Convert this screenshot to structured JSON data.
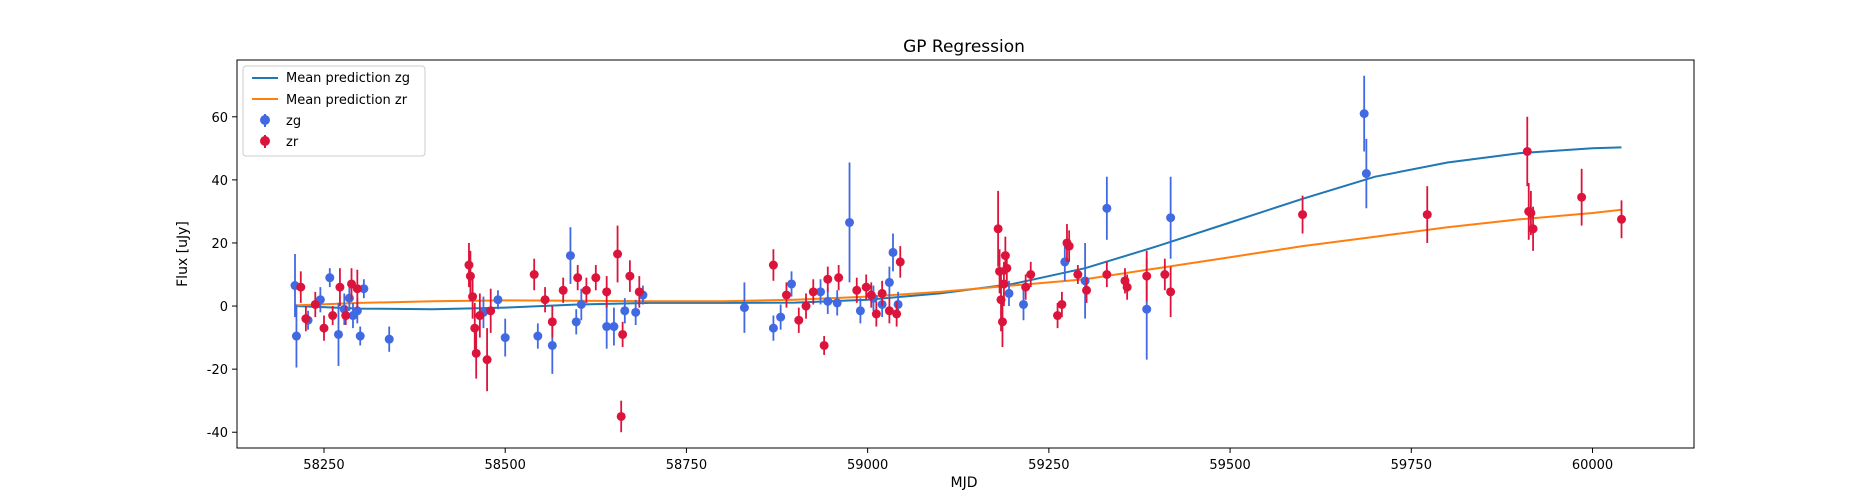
{
  "chart_data": {
    "type": "scatter",
    "title": "GP Regression",
    "xlabel": "MJD",
    "ylabel": "Flux [uJy]",
    "xlim": [
      58130,
      60140
    ],
    "ylim": [
      -45,
      78
    ],
    "x_ticks": [
      58250,
      58500,
      58750,
      59000,
      59250,
      59500,
      59750,
      60000
    ],
    "y_ticks": [
      -40,
      -20,
      0,
      20,
      40,
      60
    ],
    "grid": false,
    "legend_position": "top-left",
    "legend": [
      "Mean prediction zg",
      "Mean prediction zr",
      "zg",
      "zr"
    ],
    "series": [
      {
        "name": "Mean prediction zg",
        "kind": "line",
        "color": "#1f77b4",
        "points": [
          [
            58210,
            0.0
          ],
          [
            58300,
            -0.8
          ],
          [
            58400,
            -1.0
          ],
          [
            58500,
            -0.5
          ],
          [
            58600,
            0.5
          ],
          [
            58700,
            1.0
          ],
          [
            58800,
            1.0
          ],
          [
            58900,
            1.1
          ],
          [
            59000,
            2.0
          ],
          [
            59100,
            4.0
          ],
          [
            59200,
            7.0
          ],
          [
            59300,
            12.0
          ],
          [
            59400,
            19.0
          ],
          [
            59500,
            26.5
          ],
          [
            59600,
            34.0
          ],
          [
            59700,
            41.0
          ],
          [
            59800,
            45.5
          ],
          [
            59900,
            48.5
          ],
          [
            60000,
            50.0
          ],
          [
            60040,
            50.3
          ]
        ]
      },
      {
        "name": "Mean prediction zr",
        "kind": "line",
        "color": "#ff7f0e",
        "points": [
          [
            58210,
            0.2
          ],
          [
            58300,
            1.0
          ],
          [
            58400,
            1.5
          ],
          [
            58500,
            1.8
          ],
          [
            58600,
            1.7
          ],
          [
            58700,
            1.5
          ],
          [
            58800,
            1.5
          ],
          [
            58900,
            2.0
          ],
          [
            59000,
            3.0
          ],
          [
            59100,
            4.5
          ],
          [
            59200,
            6.5
          ],
          [
            59300,
            8.5
          ],
          [
            59400,
            12.0
          ],
          [
            59500,
            15.5
          ],
          [
            59600,
            19.0
          ],
          [
            59700,
            22.0
          ],
          [
            59800,
            25.0
          ],
          [
            59900,
            27.5
          ],
          [
            60000,
            29.5
          ],
          [
            60040,
            30.5
          ]
        ]
      },
      {
        "name": "zg",
        "kind": "errorbar",
        "color": "#4169e1",
        "points": [
          {
            "x": 58210,
            "y": 6.5,
            "err": 10
          },
          {
            "x": 58212,
            "y": -9.5,
            "err": 10
          },
          {
            "x": 58228,
            "y": -4.5,
            "err": 3
          },
          {
            "x": 58245,
            "y": 2.0,
            "err": 4
          },
          {
            "x": 58258,
            "y": 9.0,
            "err": 3
          },
          {
            "x": 58270,
            "y": -9.0,
            "err": 10
          },
          {
            "x": 58278,
            "y": -1.0,
            "err": 5
          },
          {
            "x": 58285,
            "y": 2.5,
            "err": 4
          },
          {
            "x": 58290,
            "y": -3.0,
            "err": 4
          },
          {
            "x": 58296,
            "y": -1.5,
            "err": 4
          },
          {
            "x": 58300,
            "y": -9.5,
            "err": 3
          },
          {
            "x": 58305,
            "y": 5.5,
            "err": 3
          },
          {
            "x": 58340,
            "y": -10.5,
            "err": 4
          },
          {
            "x": 58470,
            "y": -2.0,
            "err": 5
          },
          {
            "x": 58490,
            "y": 2.0,
            "err": 3
          },
          {
            "x": 58500,
            "y": -10.0,
            "err": 6
          },
          {
            "x": 58545,
            "y": -9.5,
            "err": 4
          },
          {
            "x": 58565,
            "y": -12.5,
            "err": 9
          },
          {
            "x": 58590,
            "y": 16.0,
            "err": 9
          },
          {
            "x": 58598,
            "y": -5.0,
            "err": 4
          },
          {
            "x": 58605,
            "y": 0.5,
            "err": 5
          },
          {
            "x": 58640,
            "y": -6.5,
            "err": 7
          },
          {
            "x": 58650,
            "y": -6.5,
            "err": 6
          },
          {
            "x": 58665,
            "y": -1.5,
            "err": 4
          },
          {
            "x": 58680,
            "y": -2.0,
            "err": 4
          },
          {
            "x": 58690,
            "y": 3.5,
            "err": 3
          },
          {
            "x": 58830,
            "y": -0.5,
            "err": 8
          },
          {
            "x": 58870,
            "y": -7.0,
            "err": 4
          },
          {
            "x": 58880,
            "y": -3.5,
            "err": 4
          },
          {
            "x": 58895,
            "y": 7.0,
            "err": 4
          },
          {
            "x": 58935,
            "y": 4.5,
            "err": 4
          },
          {
            "x": 58945,
            "y": 1.5,
            "err": 4
          },
          {
            "x": 58958,
            "y": 1.0,
            "err": 4
          },
          {
            "x": 58975,
            "y": 26.5,
            "err": 19
          },
          {
            "x": 58990,
            "y": -1.5,
            "err": 4
          },
          {
            "x": 59008,
            "y": 2.5,
            "err": 4
          },
          {
            "x": 59020,
            "y": 0.5,
            "err": 4
          },
          {
            "x": 59030,
            "y": 7.5,
            "err": 5
          },
          {
            "x": 59035,
            "y": 17.0,
            "err": 6
          },
          {
            "x": 59042,
            "y": 0.5,
            "err": 4
          },
          {
            "x": 59195,
            "y": 4.0,
            "err": 4
          },
          {
            "x": 59215,
            "y": 0.5,
            "err": 5
          },
          {
            "x": 59272,
            "y": 14.0,
            "err": 6
          },
          {
            "x": 59300,
            "y": 8.0,
            "err": 12
          },
          {
            "x": 59330,
            "y": 31.0,
            "err": 10
          },
          {
            "x": 59385,
            "y": -1.0,
            "err": 16
          },
          {
            "x": 59418,
            "y": 28.0,
            "err": 13
          },
          {
            "x": 59685,
            "y": 61.0,
            "err": 12
          },
          {
            "x": 59688,
            "y": 42.0,
            "err": 11
          }
        ]
      },
      {
        "name": "zr",
        "kind": "errorbar",
        "color": "#dc143c",
        "points": [
          {
            "x": 58218,
            "y": 6.0,
            "err": 5
          },
          {
            "x": 58225,
            "y": -4.0,
            "err": 4
          },
          {
            "x": 58238,
            "y": 0.5,
            "err": 4
          },
          {
            "x": 58250,
            "y": -7.0,
            "err": 4
          },
          {
            "x": 58262,
            "y": -3.0,
            "err": 3
          },
          {
            "x": 58272,
            "y": 6.0,
            "err": 6
          },
          {
            "x": 58280,
            "y": -3.0,
            "err": 3
          },
          {
            "x": 58288,
            "y": 7.0,
            "err": 5
          },
          {
            "x": 58296,
            "y": 5.5,
            "err": 6
          },
          {
            "x": 58450,
            "y": 13.0,
            "err": 7
          },
          {
            "x": 58452,
            "y": 9.5,
            "err": 8
          },
          {
            "x": 58455,
            "y": 3.0,
            "err": 7
          },
          {
            "x": 58458,
            "y": -7.0,
            "err": 8
          },
          {
            "x": 58460,
            "y": -15.0,
            "err": 8
          },
          {
            "x": 58465,
            "y": -3.0,
            "err": 7
          },
          {
            "x": 58475,
            "y": -17.0,
            "err": 10
          },
          {
            "x": 58480,
            "y": -1.5,
            "err": 7
          },
          {
            "x": 58540,
            "y": 10.0,
            "err": 5
          },
          {
            "x": 58555,
            "y": 2.0,
            "err": 4
          },
          {
            "x": 58565,
            "y": -5.0,
            "err": 5
          },
          {
            "x": 58580,
            "y": 5.0,
            "err": 4
          },
          {
            "x": 58600,
            "y": 9.0,
            "err": 4
          },
          {
            "x": 58612,
            "y": 5.0,
            "err": 4
          },
          {
            "x": 58625,
            "y": 9.0,
            "err": 4
          },
          {
            "x": 58640,
            "y": 4.5,
            "err": 5
          },
          {
            "x": 58655,
            "y": 16.5,
            "err": 9
          },
          {
            "x": 58660,
            "y": -35.0,
            "err": 5
          },
          {
            "x": 58662,
            "y": -9.0,
            "err": 4
          },
          {
            "x": 58672,
            "y": 9.5,
            "err": 5
          },
          {
            "x": 58685,
            "y": 4.5,
            "err": 5
          },
          {
            "x": 58870,
            "y": 13.0,
            "err": 5
          },
          {
            "x": 58888,
            "y": 3.5,
            "err": 4
          },
          {
            "x": 58905,
            "y": -4.5,
            "err": 4
          },
          {
            "x": 58915,
            "y": 0.0,
            "err": 4
          },
          {
            "x": 58925,
            "y": 4.5,
            "err": 4
          },
          {
            "x": 58940,
            "y": -12.5,
            "err": 3
          },
          {
            "x": 58945,
            "y": 8.5,
            "err": 4
          },
          {
            "x": 58960,
            "y": 9.0,
            "err": 4
          },
          {
            "x": 58985,
            "y": 5.0,
            "err": 4
          },
          {
            "x": 58998,
            "y": 6.0,
            "err": 4
          },
          {
            "x": 59005,
            "y": 3.5,
            "err": 4
          },
          {
            "x": 59012,
            "y": -2.5,
            "err": 4
          },
          {
            "x": 59020,
            "y": 4.0,
            "err": 4
          },
          {
            "x": 59030,
            "y": -1.5,
            "err": 4
          },
          {
            "x": 59040,
            "y": -2.5,
            "err": 4
          },
          {
            "x": 59045,
            "y": 14.0,
            "err": 5
          },
          {
            "x": 59180,
            "y": 24.5,
            "err": 12
          },
          {
            "x": 59182,
            "y": 11.0,
            "err": 7
          },
          {
            "x": 59184,
            "y": 2.0,
            "err": 10
          },
          {
            "x": 59186,
            "y": -5.0,
            "err": 8
          },
          {
            "x": 59188,
            "y": 7.0,
            "err": 7
          },
          {
            "x": 59190,
            "y": 16.0,
            "err": 6
          },
          {
            "x": 59192,
            "y": 12.0,
            "err": 5
          },
          {
            "x": 59218,
            "y": 6.0,
            "err": 4
          },
          {
            "x": 59225,
            "y": 10.0,
            "err": 4
          },
          {
            "x": 59262,
            "y": -3.0,
            "err": 4
          },
          {
            "x": 59268,
            "y": 0.5,
            "err": 4
          },
          {
            "x": 59275,
            "y": 20.0,
            "err": 6
          },
          {
            "x": 59278,
            "y": 19.0,
            "err": 5
          },
          {
            "x": 59290,
            "y": 10.0,
            "err": 3
          },
          {
            "x": 59302,
            "y": 5.0,
            "err": 4
          },
          {
            "x": 59330,
            "y": 10.0,
            "err": 4
          },
          {
            "x": 59355,
            "y": 8.0,
            "err": 4
          },
          {
            "x": 59358,
            "y": 6.0,
            "err": 4
          },
          {
            "x": 59385,
            "y": 9.5,
            "err": 8
          },
          {
            "x": 59410,
            "y": 10.0,
            "err": 5
          },
          {
            "x": 59418,
            "y": 4.5,
            "err": 8
          },
          {
            "x": 59600,
            "y": 29.0,
            "err": 6
          },
          {
            "x": 59772,
            "y": 29.0,
            "err": 9
          },
          {
            "x": 59910,
            "y": 49.0,
            "err": 11
          },
          {
            "x": 59912,
            "y": 30.0,
            "err": 9
          },
          {
            "x": 59915,
            "y": 29.5,
            "err": 7
          },
          {
            "x": 59918,
            "y": 24.5,
            "err": 7
          },
          {
            "x": 59985,
            "y": 34.5,
            "err": 9
          },
          {
            "x": 60040,
            "y": 27.5,
            "err": 6
          }
        ]
      }
    ]
  }
}
